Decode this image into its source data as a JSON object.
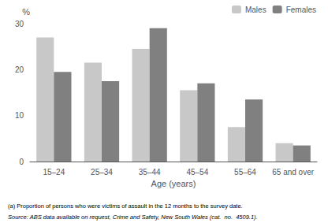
{
  "chart_data": {
    "type": "bar",
    "categories": [
      "15–24",
      "25–34",
      "35–44",
      "45–54",
      "55–64",
      "65 and over"
    ],
    "series": [
      {
        "name": "Males",
        "color": "#c8c8c8",
        "values": [
          27.0,
          21.5,
          24.5,
          15.5,
          7.5,
          4.0
        ]
      },
      {
        "name": "Females",
        "color": "#808080",
        "values": [
          19.5,
          17.5,
          29.0,
          17.0,
          13.5,
          3.5
        ]
      }
    ],
    "xlabel": "Age (years)",
    "ylabel": "%",
    "ylim": [
      0,
      30
    ],
    "yticks": [
      0,
      10,
      20,
      30
    ],
    "grid": false,
    "legend": "upper right",
    "annotations": [
      "(a) Proportion of persons who were victims of assault in the 12 months to the survey date.",
      "Source: ABS data available on request, Crime and Safety, New South Wales (cat.  no.  4509.1)."
    ]
  }
}
